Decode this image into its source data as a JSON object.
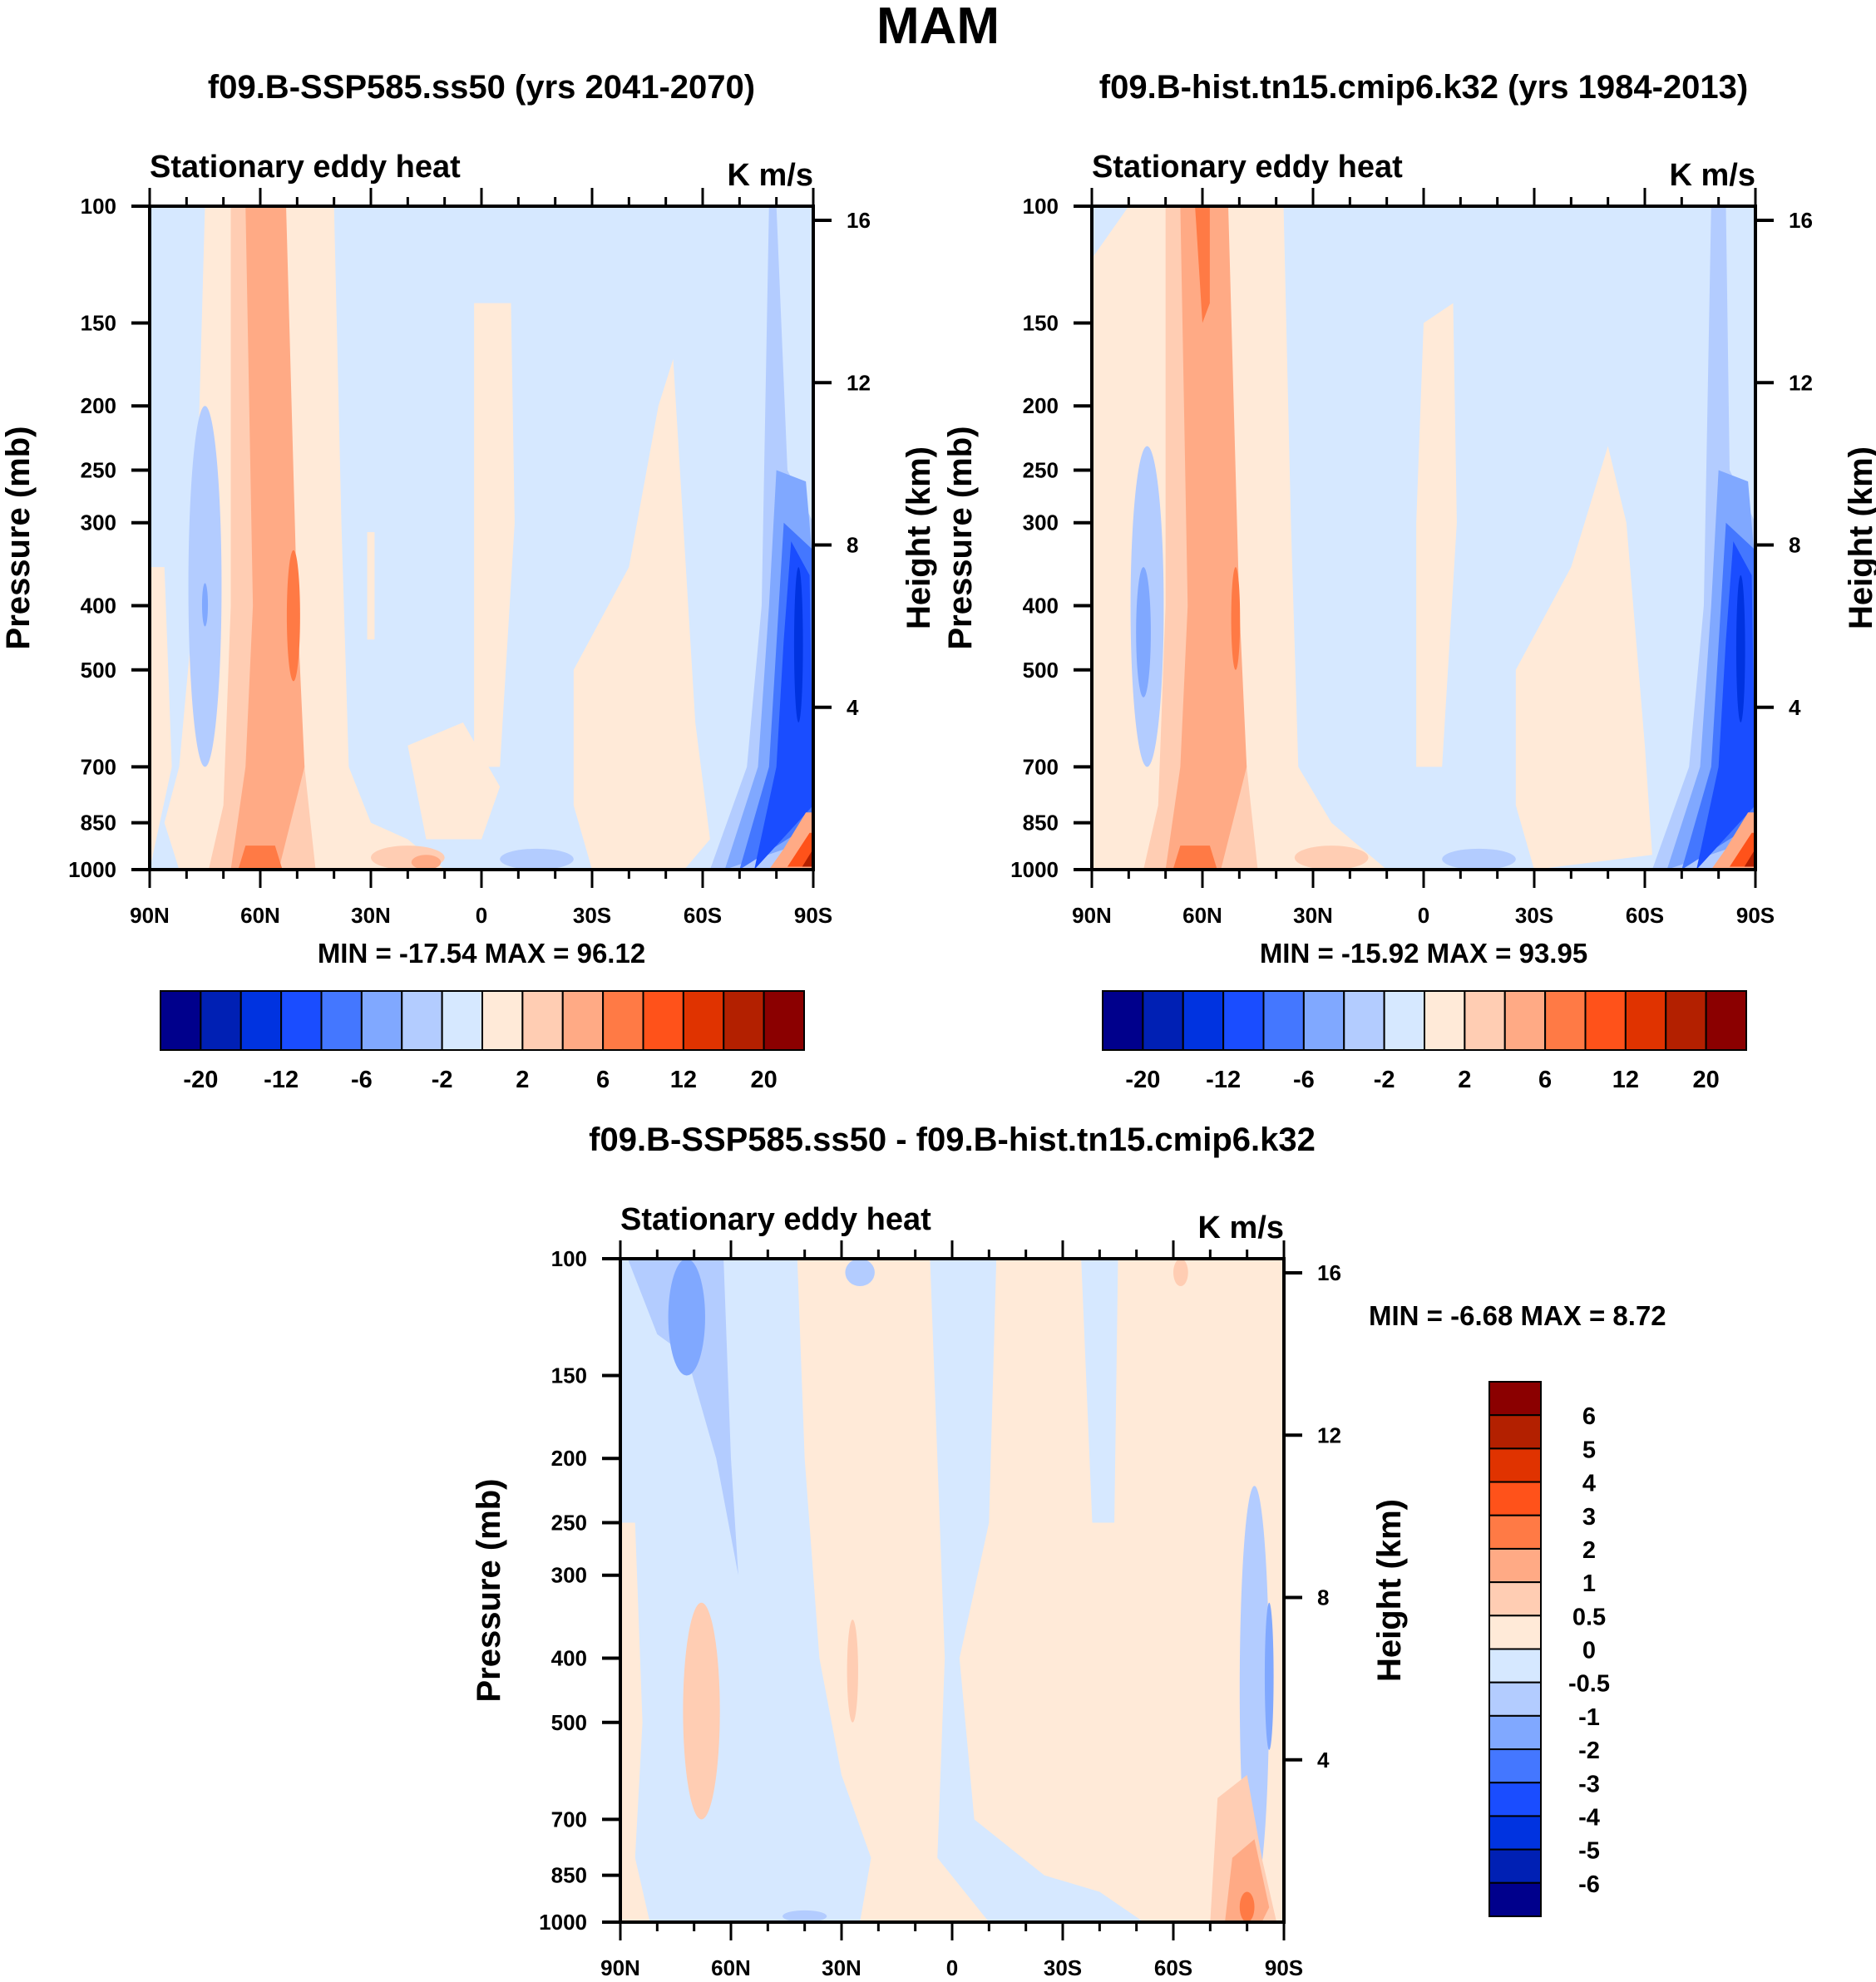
{
  "chart_data": {
    "type": "heatmap",
    "title": "MAM",
    "colors": [
      "#00008c",
      "#0020b4",
      "#0033e0",
      "#1a4dff",
      "#4477ff",
      "#80a8ff",
      "#b3ccff",
      "#d6e8ff",
      "#ffead8",
      "#ffcdb3",
      "#ffaa85",
      "#ff7a45",
      "#ff521a",
      "#e03300",
      "#b32000",
      "#8b0000"
    ],
    "panels": [
      {
        "title": "f09.B-SSP585.ss50 (yrs 2041-2070)",
        "subtitle": "Stationary eddy heat",
        "units": "K m/s",
        "ylabel": "Pressure (mb)",
        "y2label": "Height (km)",
        "xticks": [
          "90N",
          "60N",
          "30N",
          "0",
          "30S",
          "60S",
          "90S"
        ],
        "yticks": [
          "100",
          "150",
          "200",
          "250",
          "300",
          "400",
          "500",
          "700",
          "850",
          "1000"
        ],
        "y2ticks": [
          "4",
          "8",
          "12",
          "16"
        ],
        "xlim": [
          90,
          -90
        ],
        "ylim": [
          1000,
          100
        ],
        "stats_text": "MIN = -17.54  MAX =  96.12",
        "colorbar_labels": [
          "-20",
          "-12",
          "-6",
          "-2",
          "2",
          "6",
          "12",
          "20"
        ]
      },
      {
        "title": "f09.B-hist.tn15.cmip6.k32 (yrs 1984-2013)",
        "subtitle": "Stationary eddy heat",
        "units": "K m/s",
        "ylabel": "Pressure (mb)",
        "y2label": "Height (km)",
        "xticks": [
          "90N",
          "60N",
          "30N",
          "0",
          "30S",
          "60S",
          "90S"
        ],
        "yticks": [
          "100",
          "150",
          "200",
          "250",
          "300",
          "400",
          "500",
          "700",
          "850",
          "1000"
        ],
        "y2ticks": [
          "4",
          "8",
          "12",
          "16"
        ],
        "xlim": [
          90,
          -90
        ],
        "ylim": [
          1000,
          100
        ],
        "stats_text": "MIN = -15.92  MAX =  93.95",
        "colorbar_labels": [
          "-20",
          "-12",
          "-6",
          "-2",
          "2",
          "6",
          "12",
          "20"
        ]
      },
      {
        "title": "f09.B-SSP585.ss50 - f09.B-hist.tn15.cmip6.k32",
        "subtitle": "Stationary eddy heat",
        "units": "K m/s",
        "ylabel": "Pressure (mb)",
        "y2label": "Height (km)",
        "xticks": [
          "90N",
          "60N",
          "30N",
          "0",
          "30S",
          "60S",
          "90S"
        ],
        "yticks": [
          "100",
          "150",
          "200",
          "250",
          "300",
          "400",
          "500",
          "700",
          "850",
          "1000"
        ],
        "y2ticks": [
          "4",
          "8",
          "12",
          "16"
        ],
        "xlim": [
          90,
          -90
        ],
        "ylim": [
          1000,
          100
        ],
        "stats_text": "MIN =  -6.68  MAX =   8.72",
        "colorbar_labels": [
          "6",
          "5",
          "4",
          "3",
          "2",
          "1",
          "0.5",
          "0",
          "-0.5",
          "-1",
          "-2",
          "-3",
          "-4",
          "-5",
          "-6"
        ]
      }
    ]
  }
}
